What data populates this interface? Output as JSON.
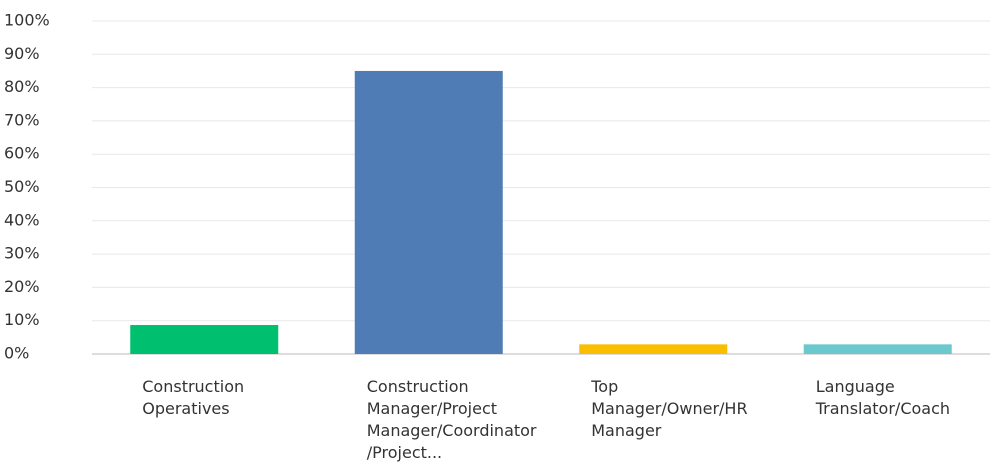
{
  "chart_data": {
    "type": "bar",
    "categories": [
      "Construction Operatives",
      "Construction Manager/Project Manager/Coordinator/Project...",
      "Top Manager/Owner/HR Manager",
      "Language Translator/Coach"
    ],
    "values": [
      8.7,
      85.0,
      2.9,
      2.9
    ],
    "colors": [
      "#00bf6f",
      "#507cb6",
      "#f9be00",
      "#6bc8cd"
    ],
    "ylim": [
      0,
      100
    ],
    "yticks": [
      {
        "value": 0,
        "label": "0%"
      },
      {
        "value": 10,
        "label": "10%"
      },
      {
        "value": 20,
        "label": "20%"
      },
      {
        "value": 30,
        "label": "30%"
      },
      {
        "value": 40,
        "label": "40%"
      },
      {
        "value": 50,
        "label": "50%"
      },
      {
        "value": 60,
        "label": "60%"
      },
      {
        "value": 70,
        "label": "70%"
      },
      {
        "value": 80,
        "label": "80%"
      },
      {
        "value": 90,
        "label": "90%"
      },
      {
        "value": 100,
        "label": "100%"
      }
    ],
    "grid": true
  }
}
